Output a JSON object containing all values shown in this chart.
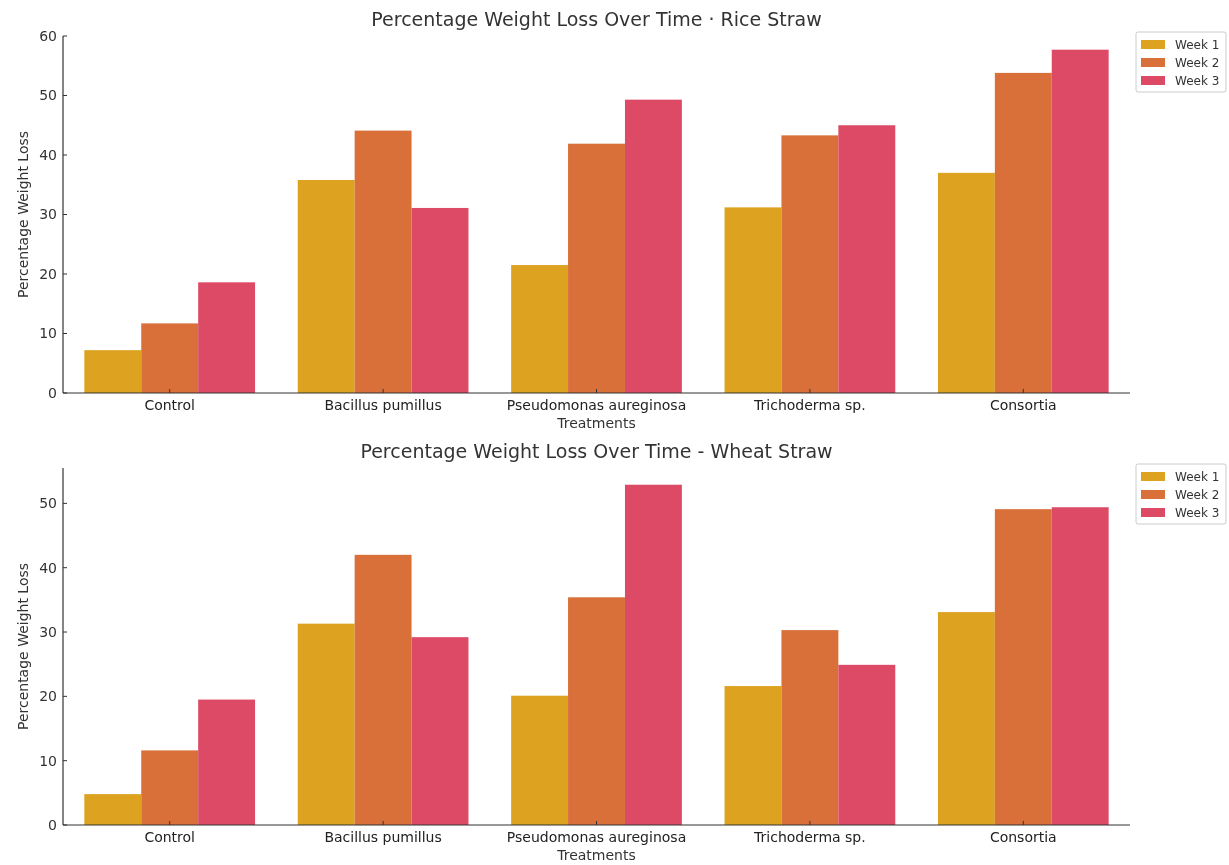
{
  "chart_data": [
    {
      "type": "bar",
      "title": "Percentage Weight Loss Over Time · Rice Straw",
      "xlabel": "Treatments",
      "ylabel": "Percentage Weight Loss",
      "categories": [
        "Control",
        "Bacillus pumillus",
        "Pseudomonas aureginosa",
        "Trichoderma sp.",
        "Consortia"
      ],
      "series": [
        {
          "name": "Week 1",
          "color": "#dda21f",
          "values": [
            7.2,
            35.8,
            21.5,
            31.2,
            37.0
          ]
        },
        {
          "name": "Week 2",
          "color": "#d9703a",
          "values": [
            11.7,
            44.1,
            41.9,
            43.3,
            53.8
          ]
        },
        {
          "name": "Week 3",
          "color": "#dc4a65",
          "values": [
            18.6,
            31.1,
            49.3,
            45.0,
            57.7
          ]
        }
      ],
      "ylim": [
        0,
        60
      ],
      "yticks": [
        0,
        10,
        20,
        30,
        40,
        50,
        60
      ],
      "grid": false,
      "legend": "top right"
    },
    {
      "type": "bar",
      "title": "Percentage Weight Loss Over Time - Wheat Straw",
      "xlabel": "Treatments",
      "ylabel": "Percentage Weight Loss",
      "categories": [
        "Control",
        "Bacillus pumillus",
        "Pseudomonas aureginosa",
        "Trichoderma sp.",
        "Consortia"
      ],
      "series": [
        {
          "name": "Week 1",
          "color": "#dda21f",
          "values": [
            4.8,
            31.3,
            20.1,
            21.6,
            33.1
          ]
        },
        {
          "name": "Week 2",
          "color": "#d9703a",
          "values": [
            11.6,
            42.0,
            35.4,
            30.3,
            49.1
          ]
        },
        {
          "name": "Week 3",
          "color": "#dc4a65",
          "values": [
            19.5,
            29.2,
            52.9,
            24.9,
            49.4
          ]
        }
      ],
      "ylim": [
        0,
        55.5
      ],
      "yticks": [
        0,
        10,
        20,
        30,
        40,
        50
      ],
      "grid": false,
      "legend": "top right"
    }
  ]
}
